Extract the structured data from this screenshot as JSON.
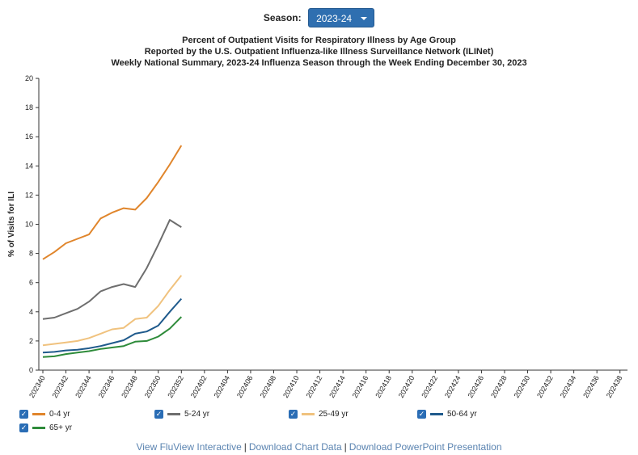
{
  "season": {
    "label": "Season:",
    "selected": "2023-24"
  },
  "titles": [
    "Percent of Outpatient Visits for Respiratory Illness by Age Group",
    "Reported by the U.S. Outpatient Influenza-like Illness Surveillance Network (ILINet)",
    "Weekly National Summary, 2023-24 Influenza Season through the Week Ending December 30, 2023"
  ],
  "colors": {
    "checkbox": "#2a6db5",
    "link": "#5b84b1",
    "axis": "#333333"
  },
  "links": [
    "View FluView Interactive",
    "Download Chart Data",
    "Download PowerPoint Presentation"
  ],
  "links_separator": "|",
  "chart_data": {
    "type": "line",
    "title": "",
    "xlabel": "",
    "ylabel": "% of Visits for ILI",
    "ylim": [
      0,
      20
    ],
    "yticks": [
      0,
      2,
      4,
      6,
      8,
      10,
      12,
      14,
      16,
      18,
      20
    ],
    "grid": false,
    "legend_position": "bottom-left",
    "x_ticks": [
      "202340",
      "202342",
      "202344",
      "202346",
      "202348",
      "202350",
      "202352",
      "202402",
      "202404",
      "202406",
      "202408",
      "202410",
      "202412",
      "202414",
      "202416",
      "202418",
      "202420",
      "202422",
      "202424",
      "202426",
      "202428",
      "202430",
      "202432",
      "202434",
      "202436",
      "202438"
    ],
    "x_weeks": [
      "202340",
      "202341",
      "202342",
      "202343",
      "202344",
      "202345",
      "202346",
      "202347",
      "202348",
      "202349",
      "202350",
      "202351",
      "202352"
    ],
    "x_total_weeks": 52,
    "series": [
      {
        "name": "0-4 yr",
        "color": "#e0852b",
        "checked": true,
        "values": [
          7.6,
          8.1,
          8.7,
          9.0,
          9.3,
          10.4,
          10.8,
          11.1,
          11.0,
          11.8,
          12.9,
          14.1,
          15.4
        ]
      },
      {
        "name": "5-24 yr",
        "color": "#6e6e6e",
        "checked": true,
        "values": [
          3.5,
          3.6,
          3.9,
          4.2,
          4.7,
          5.4,
          5.7,
          5.9,
          5.7,
          7.0,
          8.6,
          10.3,
          9.8
        ]
      },
      {
        "name": "25-49 yr",
        "color": "#f0c27e",
        "checked": true,
        "values": [
          1.7,
          1.8,
          1.9,
          2.0,
          2.2,
          2.5,
          2.8,
          2.9,
          3.5,
          3.6,
          4.4,
          5.5,
          6.5
        ]
      },
      {
        "name": "50-64 yr",
        "color": "#1f5a8c",
        "checked": true,
        "values": [
          1.2,
          1.25,
          1.35,
          1.4,
          1.5,
          1.65,
          1.85,
          2.05,
          2.5,
          2.65,
          3.05,
          4.0,
          4.9
        ]
      },
      {
        "name": "65+ yr",
        "color": "#2e8b3a",
        "checked": true,
        "values": [
          0.9,
          0.95,
          1.1,
          1.2,
          1.3,
          1.45,
          1.55,
          1.65,
          1.95,
          2.0,
          2.3,
          2.85,
          3.65
        ]
      }
    ]
  }
}
